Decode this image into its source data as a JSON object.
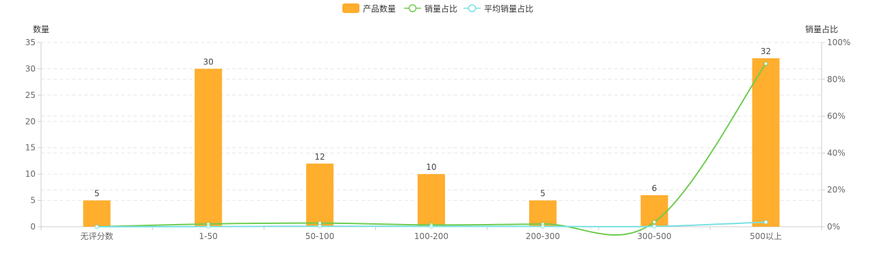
{
  "chart_data": {
    "type": "bar",
    "categories": [
      "无评分数",
      "1-50",
      "50-100",
      "100-200",
      "200-300",
      "300-500",
      "500以上"
    ],
    "series": [
      {
        "name": "产品数量",
        "type": "bar",
        "axis": "left",
        "values": [
          5,
          30,
          12,
          10,
          5,
          6,
          32
        ]
      },
      {
        "name": "销量占比",
        "type": "line",
        "axis": "right",
        "values": [
          0.0,
          1.5,
          2.0,
          1.0,
          1.5,
          2.5,
          88.5
        ]
      },
      {
        "name": "平均销量占比",
        "type": "line",
        "axis": "right",
        "values": [
          0.0,
          0.1,
          0.3,
          0.2,
          0.2,
          0.2,
          2.5
        ]
      }
    ],
    "y_left": {
      "label": "数量",
      "min": 0,
      "max": 35,
      "ticks": [
        0,
        5,
        10,
        15,
        20,
        25,
        30,
        35
      ]
    },
    "y_right": {
      "label": "销量占比",
      "min": 0,
      "max": 100,
      "ticks": [
        "0%",
        "20%",
        "40%",
        "60%",
        "80%",
        "100%"
      ]
    },
    "legend_position": "top-center",
    "grid": true,
    "colors": {
      "bar": "#FFAE2E",
      "sales_share": "#6ECC4F",
      "avg_sales_share": "#78E0E3",
      "grid": "#E6E6E6",
      "axis": "#CCCCCC",
      "text": "#666666"
    }
  }
}
